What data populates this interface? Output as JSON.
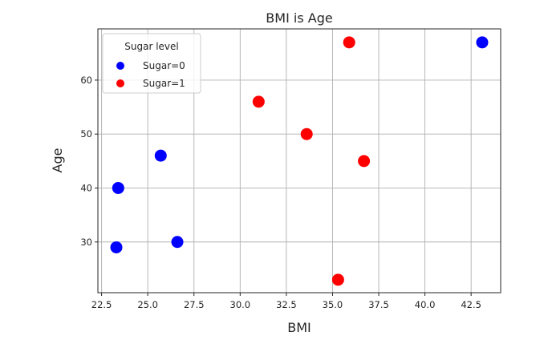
{
  "chart_data": {
    "type": "scatter",
    "title": "BMI is Age",
    "xlabel": "BMI",
    "ylabel": "Age",
    "xlim": [
      22.3,
      44.1
    ],
    "ylim": [
      20.6,
      69.5
    ],
    "xticks": [
      22.5,
      25.0,
      27.5,
      30.0,
      32.5,
      35.0,
      37.5,
      40.0,
      42.5
    ],
    "xtick_labels": [
      "22.5",
      "25.0",
      "27.5",
      "30.0",
      "32.5",
      "35.0",
      "37.5",
      "40.0",
      "42.5"
    ],
    "yticks": [
      30,
      40,
      50,
      60
    ],
    "ytick_labels": [
      "30",
      "40",
      "50",
      "60"
    ],
    "grid": true,
    "legend": {
      "title": "Sugar level",
      "placement": "top-left"
    },
    "series": [
      {
        "name": "Sugar=0",
        "color": "#0000ff",
        "points": [
          {
            "x": 23.3,
            "y": 29
          },
          {
            "x": 23.4,
            "y": 40
          },
          {
            "x": 25.7,
            "y": 46
          },
          {
            "x": 26.6,
            "y": 30
          },
          {
            "x": 43.1,
            "y": 67
          }
        ]
      },
      {
        "name": "Sugar=1",
        "color": "#ff0000",
        "points": [
          {
            "x": 31.0,
            "y": 56
          },
          {
            "x": 33.6,
            "y": 50
          },
          {
            "x": 35.3,
            "y": 23
          },
          {
            "x": 35.9,
            "y": 67
          },
          {
            "x": 36.7,
            "y": 45
          }
        ]
      }
    ]
  }
}
